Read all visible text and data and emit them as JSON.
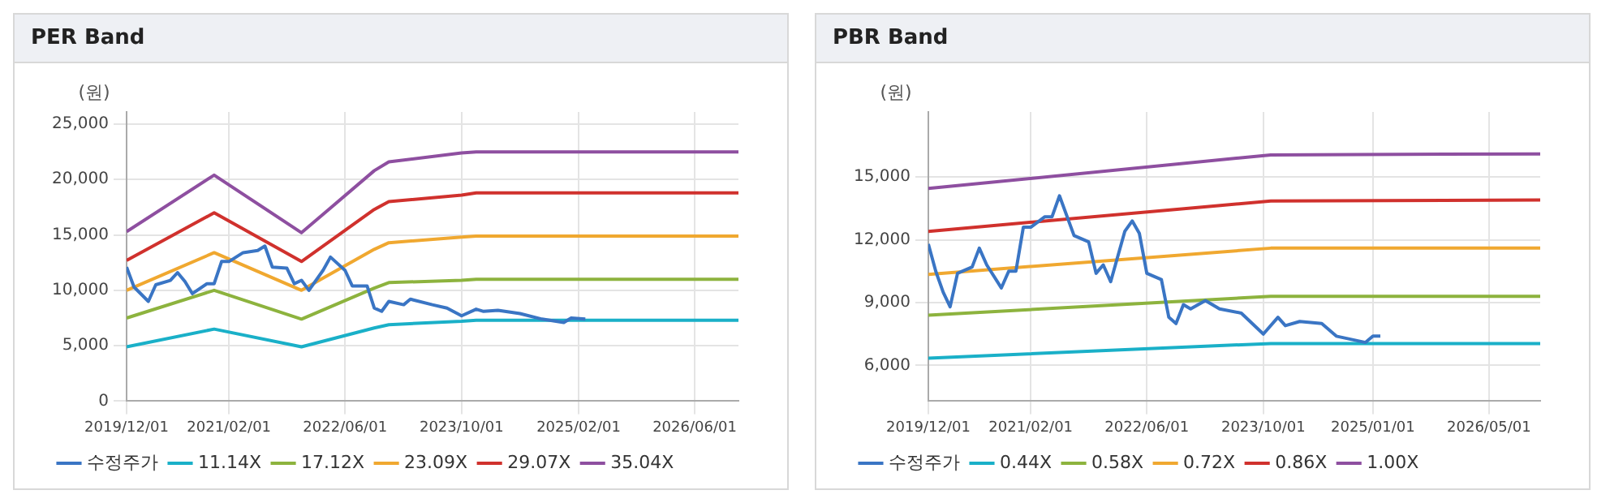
{
  "chart_data": [
    {
      "type": "line",
      "title": "PER Band",
      "ylabel": "(원)",
      "grid": true,
      "legend": "bottom",
      "xlim": [
        "2019-12",
        "2026-12"
      ],
      "xticks": [
        {
          "value": "2019-12",
          "label": "2019/12/01"
        },
        {
          "value": "2021-02",
          "label": "2021/02/01"
        },
        {
          "value": "2022-06",
          "label": "2022/06/01"
        },
        {
          "value": "2023-10",
          "label": "2023/10/01"
        },
        {
          "value": "2025-02",
          "label": "2025/02/01"
        },
        {
          "value": "2026-06",
          "label": "2026/06/01"
        }
      ],
      "ylim": [
        0,
        26100
      ],
      "yticks": [
        0,
        {
          "value": 5000,
          "label": "5,000"
        },
        {
          "value": 10000,
          "label": "10,000"
        },
        {
          "value": 15000,
          "label": "15,000"
        },
        {
          "value": 20000,
          "label": "20,000"
        },
        {
          "value": 25000,
          "label": "25,000"
        }
      ],
      "series": [
        {
          "name": "수정주가",
          "color": "#3a75c4",
          "x": [
            "2019-12",
            "2020-01",
            "2020-03",
            "2020-04",
            "2020-06",
            "2020-07",
            "2020-08",
            "2020-09",
            "2020-11",
            "2020-12",
            "2021-01",
            "2021-02",
            "2021-04",
            "2021-06",
            "2021-07",
            "2021-08",
            "2021-10",
            "2021-11",
            "2021-12",
            "2022-01",
            "2022-03",
            "2022-04",
            "2022-06",
            "2022-07",
            "2022-09",
            "2022-10",
            "2022-11",
            "2022-12",
            "2023-02",
            "2023-03",
            "2023-06",
            "2023-08",
            "2023-10",
            "2023-12",
            "2024-01",
            "2024-03",
            "2024-06",
            "2024-09",
            "2024-12",
            "2025-01",
            "2025-03"
          ],
          "values": [
            12100,
            10300,
            9000,
            10500,
            10900,
            11600,
            10800,
            9700,
            10600,
            10600,
            12600,
            12600,
            13400,
            13600,
            14000,
            12100,
            12000,
            10600,
            10900,
            10000,
            11800,
            13000,
            11800,
            10400,
            10400,
            8400,
            8100,
            9000,
            8700,
            9200,
            8700,
            8400,
            7700,
            8300,
            8100,
            8200,
            7900,
            7400,
            7100,
            7500,
            7400
          ]
        },
        {
          "name": "11.14X",
          "color": "#1ab0c8",
          "x": [
            "2019-12",
            "2020-12",
            "2021-12",
            "2022-10",
            "2022-12",
            "2023-10",
            "2023-12",
            "2026-12"
          ],
          "values": [
            4900,
            6500,
            4900,
            6600,
            6900,
            7200,
            7300,
            7300
          ]
        },
        {
          "name": "17.12X",
          "color": "#8db33e",
          "x": [
            "2019-12",
            "2020-12",
            "2021-12",
            "2022-10",
            "2022-12",
            "2023-10",
            "2023-12",
            "2026-12"
          ],
          "values": [
            7500,
            10000,
            7400,
            10200,
            10700,
            10900,
            11000,
            11000
          ]
        },
        {
          "name": "23.09X",
          "color": "#f0a830",
          "x": [
            "2019-12",
            "2020-12",
            "2021-12",
            "2022-10",
            "2022-12",
            "2023-10",
            "2023-12",
            "2026-12"
          ],
          "values": [
            10000,
            13400,
            10000,
            13700,
            14300,
            14800,
            14900,
            14900
          ]
        },
        {
          "name": "29.07X",
          "color": "#d0312d",
          "x": [
            "2019-12",
            "2020-12",
            "2021-12",
            "2022-10",
            "2022-12",
            "2023-10",
            "2023-12",
            "2026-12"
          ],
          "values": [
            12700,
            17000,
            12600,
            17300,
            18000,
            18600,
            18800,
            18800
          ]
        },
        {
          "name": "35.04X",
          "color": "#8e4fa0",
          "x": [
            "2019-12",
            "2020-12",
            "2021-12",
            "2022-10",
            "2022-12",
            "2023-10",
            "2023-12",
            "2026-12"
          ],
          "values": [
            15300,
            20400,
            15200,
            20800,
            21600,
            22400,
            22500,
            22500
          ]
        }
      ]
    },
    {
      "type": "line",
      "title": "PBR Band",
      "ylabel": "(원)",
      "grid": true,
      "legend": "bottom",
      "xlim": [
        "2019-12",
        "2026-12"
      ],
      "xticks": [
        {
          "value": "2019-12",
          "label": "2019/12/01"
        },
        {
          "value": "2021-02",
          "label": "2021/02/01"
        },
        {
          "value": "2022-06",
          "label": "2022/06/01"
        },
        {
          "value": "2023-10",
          "label": "2023/10/01"
        },
        {
          "value": "2025-01",
          "label": "2025/01/01"
        },
        {
          "value": "2026-05",
          "label": "2026/05/01"
        }
      ],
      "ylim": [
        4300,
        18100
      ],
      "yticks": [
        {
          "value": 6000,
          "label": "6,000"
        },
        {
          "value": 9000,
          "label": "9,000"
        },
        {
          "value": 12000,
          "label": "12,000"
        },
        {
          "value": 15000,
          "label": "15,000"
        }
      ],
      "series": [
        {
          "name": "수정주가",
          "color": "#3a75c4",
          "x": [
            "2019-12",
            "2020-01",
            "2020-02",
            "2020-03",
            "2020-04",
            "2020-06",
            "2020-07",
            "2020-08",
            "2020-10",
            "2020-11",
            "2020-12",
            "2021-01",
            "2021-02",
            "2021-04",
            "2021-05",
            "2021-06",
            "2021-08",
            "2021-10",
            "2021-11",
            "2021-12",
            "2022-01",
            "2022-03",
            "2022-04",
            "2022-05",
            "2022-06",
            "2022-08",
            "2022-09",
            "2022-10",
            "2022-11",
            "2022-12",
            "2023-02",
            "2023-04",
            "2023-07",
            "2023-10",
            "2023-12",
            "2024-01",
            "2024-03",
            "2024-06",
            "2024-08",
            "2024-12",
            "2025-01",
            "2025-02"
          ],
          "values": [
            11800,
            10500,
            9500,
            8800,
            10400,
            10700,
            11600,
            10800,
            9700,
            10500,
            10500,
            12600,
            12600,
            13100,
            13100,
            14100,
            12200,
            11900,
            10400,
            10800,
            10000,
            12400,
            12900,
            12300,
            10400,
            10100,
            8300,
            8000,
            8900,
            8700,
            9100,
            8700,
            8500,
            7500,
            8300,
            7900,
            8100,
            8000,
            7400,
            7100,
            7400,
            7400
          ]
        },
        {
          "name": "0.44X",
          "color": "#1ab0c8",
          "x": [
            "2019-12",
            "2023-11",
            "2026-12"
          ],
          "values": [
            6350,
            7050,
            7050
          ]
        },
        {
          "name": "0.58X",
          "color": "#8db33e",
          "x": [
            "2019-12",
            "2023-11",
            "2026-12"
          ],
          "values": [
            8400,
            9300,
            9300
          ]
        },
        {
          "name": "0.72X",
          "color": "#f0a830",
          "x": [
            "2019-12",
            "2023-11",
            "2026-12"
          ],
          "values": [
            10350,
            11600,
            11600
          ]
        },
        {
          "name": "0.86X",
          "color": "#d0312d",
          "x": [
            "2019-12",
            "2023-11",
            "2026-12"
          ],
          "values": [
            12400,
            13850,
            13900
          ]
        },
        {
          "name": "1.00X",
          "color": "#8e4fa0",
          "x": [
            "2019-12",
            "2023-11",
            "2026-12"
          ],
          "values": [
            14450,
            16050,
            16100
          ]
        }
      ]
    }
  ]
}
